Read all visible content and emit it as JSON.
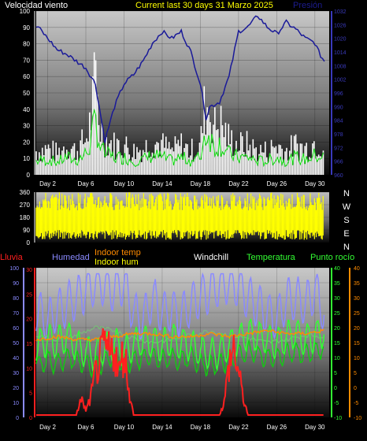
{
  "header": {
    "left_title": "Velocidad viento",
    "center_title": "Current last 30 days 31 Marzo 2025",
    "right_title": "Presión"
  },
  "colors": {
    "background": "#000000",
    "wind": "#ffffff",
    "wind_avg": "#22dd22",
    "pressure": "#1a1a99",
    "pressure_axis": "#3a3abb",
    "direction": "#ffff00",
    "rain": "#ff2020",
    "humidity": "#8a8aff",
    "indoor_temp": "#ff8c00",
    "indoor_hum": "#ffff00",
    "windchill": "#ffffff",
    "temperature": "#33ff33",
    "dew_point": "#33ff33",
    "indoor_hum_line": "#7ab87a"
  },
  "x_axis": {
    "labels": [
      "Day 2",
      "Day 6",
      "Day 10",
      "Day 14",
      "Day 18",
      "Day 22",
      "Day 26",
      "Day 30"
    ],
    "days": [
      2,
      6,
      10,
      14,
      18,
      22,
      26,
      30
    ],
    "range": [
      0.8,
      31.5
    ]
  },
  "chart_data": [
    {
      "type": "line",
      "title": "Velocidad viento",
      "ylim": [
        0,
        100
      ],
      "yticks": [
        "0",
        "10",
        "20",
        "30",
        "40",
        "50",
        "60",
        "70",
        "80",
        "90",
        "100"
      ],
      "series": [
        {
          "name": "Velocidad viento",
          "axis": "left",
          "x": [
            1,
            2,
            3,
            4,
            5,
            6,
            6.5,
            7,
            7.5,
            8,
            9,
            10,
            11,
            12,
            13,
            14,
            15,
            16,
            17,
            18,
            18.5,
            19,
            19.5,
            20,
            21,
            22,
            23,
            24,
            25,
            26,
            27,
            28,
            29,
            30,
            31
          ],
          "values": [
            20,
            22,
            18,
            25,
            20,
            30,
            45,
            80,
            40,
            30,
            25,
            25,
            20,
            22,
            28,
            25,
            20,
            25,
            20,
            25,
            60,
            55,
            40,
            45,
            30,
            25,
            25,
            20,
            20,
            25,
            20,
            25,
            22,
            28,
            25
          ]
        },
        {
          "name": "Presión",
          "axis": "right",
          "x": [
            1,
            2,
            3,
            4,
            5,
            6,
            7,
            8,
            9,
            10,
            11,
            12,
            13,
            14,
            15,
            16,
            17,
            18,
            18.6,
            19,
            20,
            21,
            22,
            23,
            24,
            25,
            26,
            27,
            28,
            29,
            30,
            30.5,
            31
          ],
          "values": [
            1025,
            1020,
            1015,
            1013,
            1010,
            1007,
            1000,
            975,
            990,
            1000,
            1004,
            1010,
            1018,
            1023,
            1020,
            1023,
            1014,
            1000,
            985,
            990,
            992,
            1003,
            1023,
            1025,
            1030,
            1025,
            1022,
            1027,
            1024,
            1020,
            1018,
            1013,
            1010
          ]
        }
      ],
      "y2_ticks": [
        "960",
        "966",
        "972",
        "978",
        "984",
        "990",
        "996",
        "1002",
        "1008",
        "1014",
        "1020",
        "1026",
        "1032"
      ]
    },
    {
      "type": "area",
      "yticks": [
        "0",
        "90",
        "180",
        "270",
        "360"
      ],
      "ylim": [
        0,
        360
      ],
      "compass": [
        "N",
        "W",
        "S",
        "E",
        "N"
      ]
    },
    {
      "type": "line",
      "ylim": [
        0,
        100
      ],
      "yticks": [
        "0",
        "10",
        "20",
        "30",
        "40",
        "50",
        "60",
        "70",
        "80",
        "90",
        "100"
      ],
      "rain_ticks": [
        "0",
        "5",
        "10",
        "15",
        "20",
        "25",
        "30"
      ],
      "temp_ticks": [
        "-10",
        "-5",
        "0",
        "5",
        "10",
        "15",
        "20",
        "25",
        "30",
        "35",
        "40"
      ],
      "labels": {
        "rain": "Lluvia",
        "humidity": "Humedad",
        "indoor_temp": "Indoor temp",
        "indoor_hum": "Indoor hum",
        "windchill": "Windchill",
        "temperature": "Temperatura",
        "dew_point": "Punto rocío"
      },
      "series": [
        {
          "name": "Humedad",
          "x": [
            1,
            2,
            3,
            4,
            5,
            6,
            7,
            8,
            9,
            10,
            11,
            12,
            13,
            14,
            15,
            16,
            17,
            18,
            19,
            20,
            21,
            22,
            23,
            24,
            25,
            26,
            27,
            28,
            29,
            30,
            31
          ],
          "values": [
            70,
            65,
            72,
            75,
            80,
            85,
            90,
            88,
            85,
            90,
            70,
            65,
            80,
            70,
            72,
            68,
            75,
            80,
            85,
            88,
            90,
            88,
            80,
            75,
            70,
            65,
            78,
            80,
            75,
            85,
            70
          ]
        },
        {
          "name": "Indoor temp",
          "x": [
            1,
            3,
            5,
            7,
            9,
            11,
            13,
            15,
            17,
            19,
            21,
            23,
            25,
            27,
            29,
            31
          ],
          "values": [
            16,
            17,
            16,
            16,
            17,
            18,
            18,
            17,
            17,
            18,
            17,
            18,
            19,
            18,
            18,
            19
          ]
        },
        {
          "name": "Indoor hum",
          "x": [
            1,
            3,
            5,
            7,
            9,
            11,
            13,
            15,
            17,
            19,
            21,
            23,
            25,
            27,
            29,
            31
          ],
          "values": [
            55,
            52,
            55,
            60,
            58,
            53,
            50,
            52,
            55,
            58,
            55,
            53,
            50,
            52,
            55,
            54
          ]
        },
        {
          "name": "Temperatura",
          "x": [
            1,
            2,
            3,
            4,
            5,
            6,
            7,
            8,
            9,
            10,
            11,
            12,
            13,
            14,
            15,
            16,
            17,
            18,
            19,
            20,
            21,
            22,
            23,
            24,
            25,
            26,
            27,
            28,
            29,
            30,
            31
          ],
          "values": [
            14,
            16,
            15,
            17,
            14,
            12,
            11,
            13,
            15,
            12,
            14,
            16,
            15,
            14,
            16,
            15,
            14,
            12,
            11,
            12,
            14,
            16,
            18,
            17,
            16,
            15,
            17,
            18,
            16,
            17,
            19
          ]
        },
        {
          "name": "Punto rocío",
          "x": [
            1,
            2,
            3,
            4,
            5,
            6,
            7,
            8,
            9,
            10,
            11,
            12,
            13,
            14,
            15,
            16,
            17,
            18,
            19,
            20,
            21,
            22,
            23,
            24,
            25,
            26,
            27,
            28,
            29,
            30,
            31
          ],
          "values": [
            8,
            9,
            8,
            10,
            9,
            8,
            7,
            9,
            10,
            8,
            9,
            10,
            10,
            9,
            10,
            9,
            10,
            8,
            7,
            8,
            9,
            11,
            12,
            11,
            10,
            10,
            11,
            12,
            11,
            12,
            13
          ]
        },
        {
          "name": "Lluvia",
          "x": [
            1,
            5,
            5.5,
            6,
            6.5,
            7,
            8,
            8.5,
            9,
            9.5,
            10,
            10.5,
            11,
            20,
            20.5,
            21,
            21.5,
            22,
            22.5,
            23,
            31
          ],
          "values": [
            0,
            0,
            4,
            1,
            4,
            10,
            16,
            14,
            16,
            10,
            16,
            6,
            0,
            0,
            3,
            12,
            16,
            10,
            4,
            0,
            0
          ]
        }
      ]
    }
  ]
}
